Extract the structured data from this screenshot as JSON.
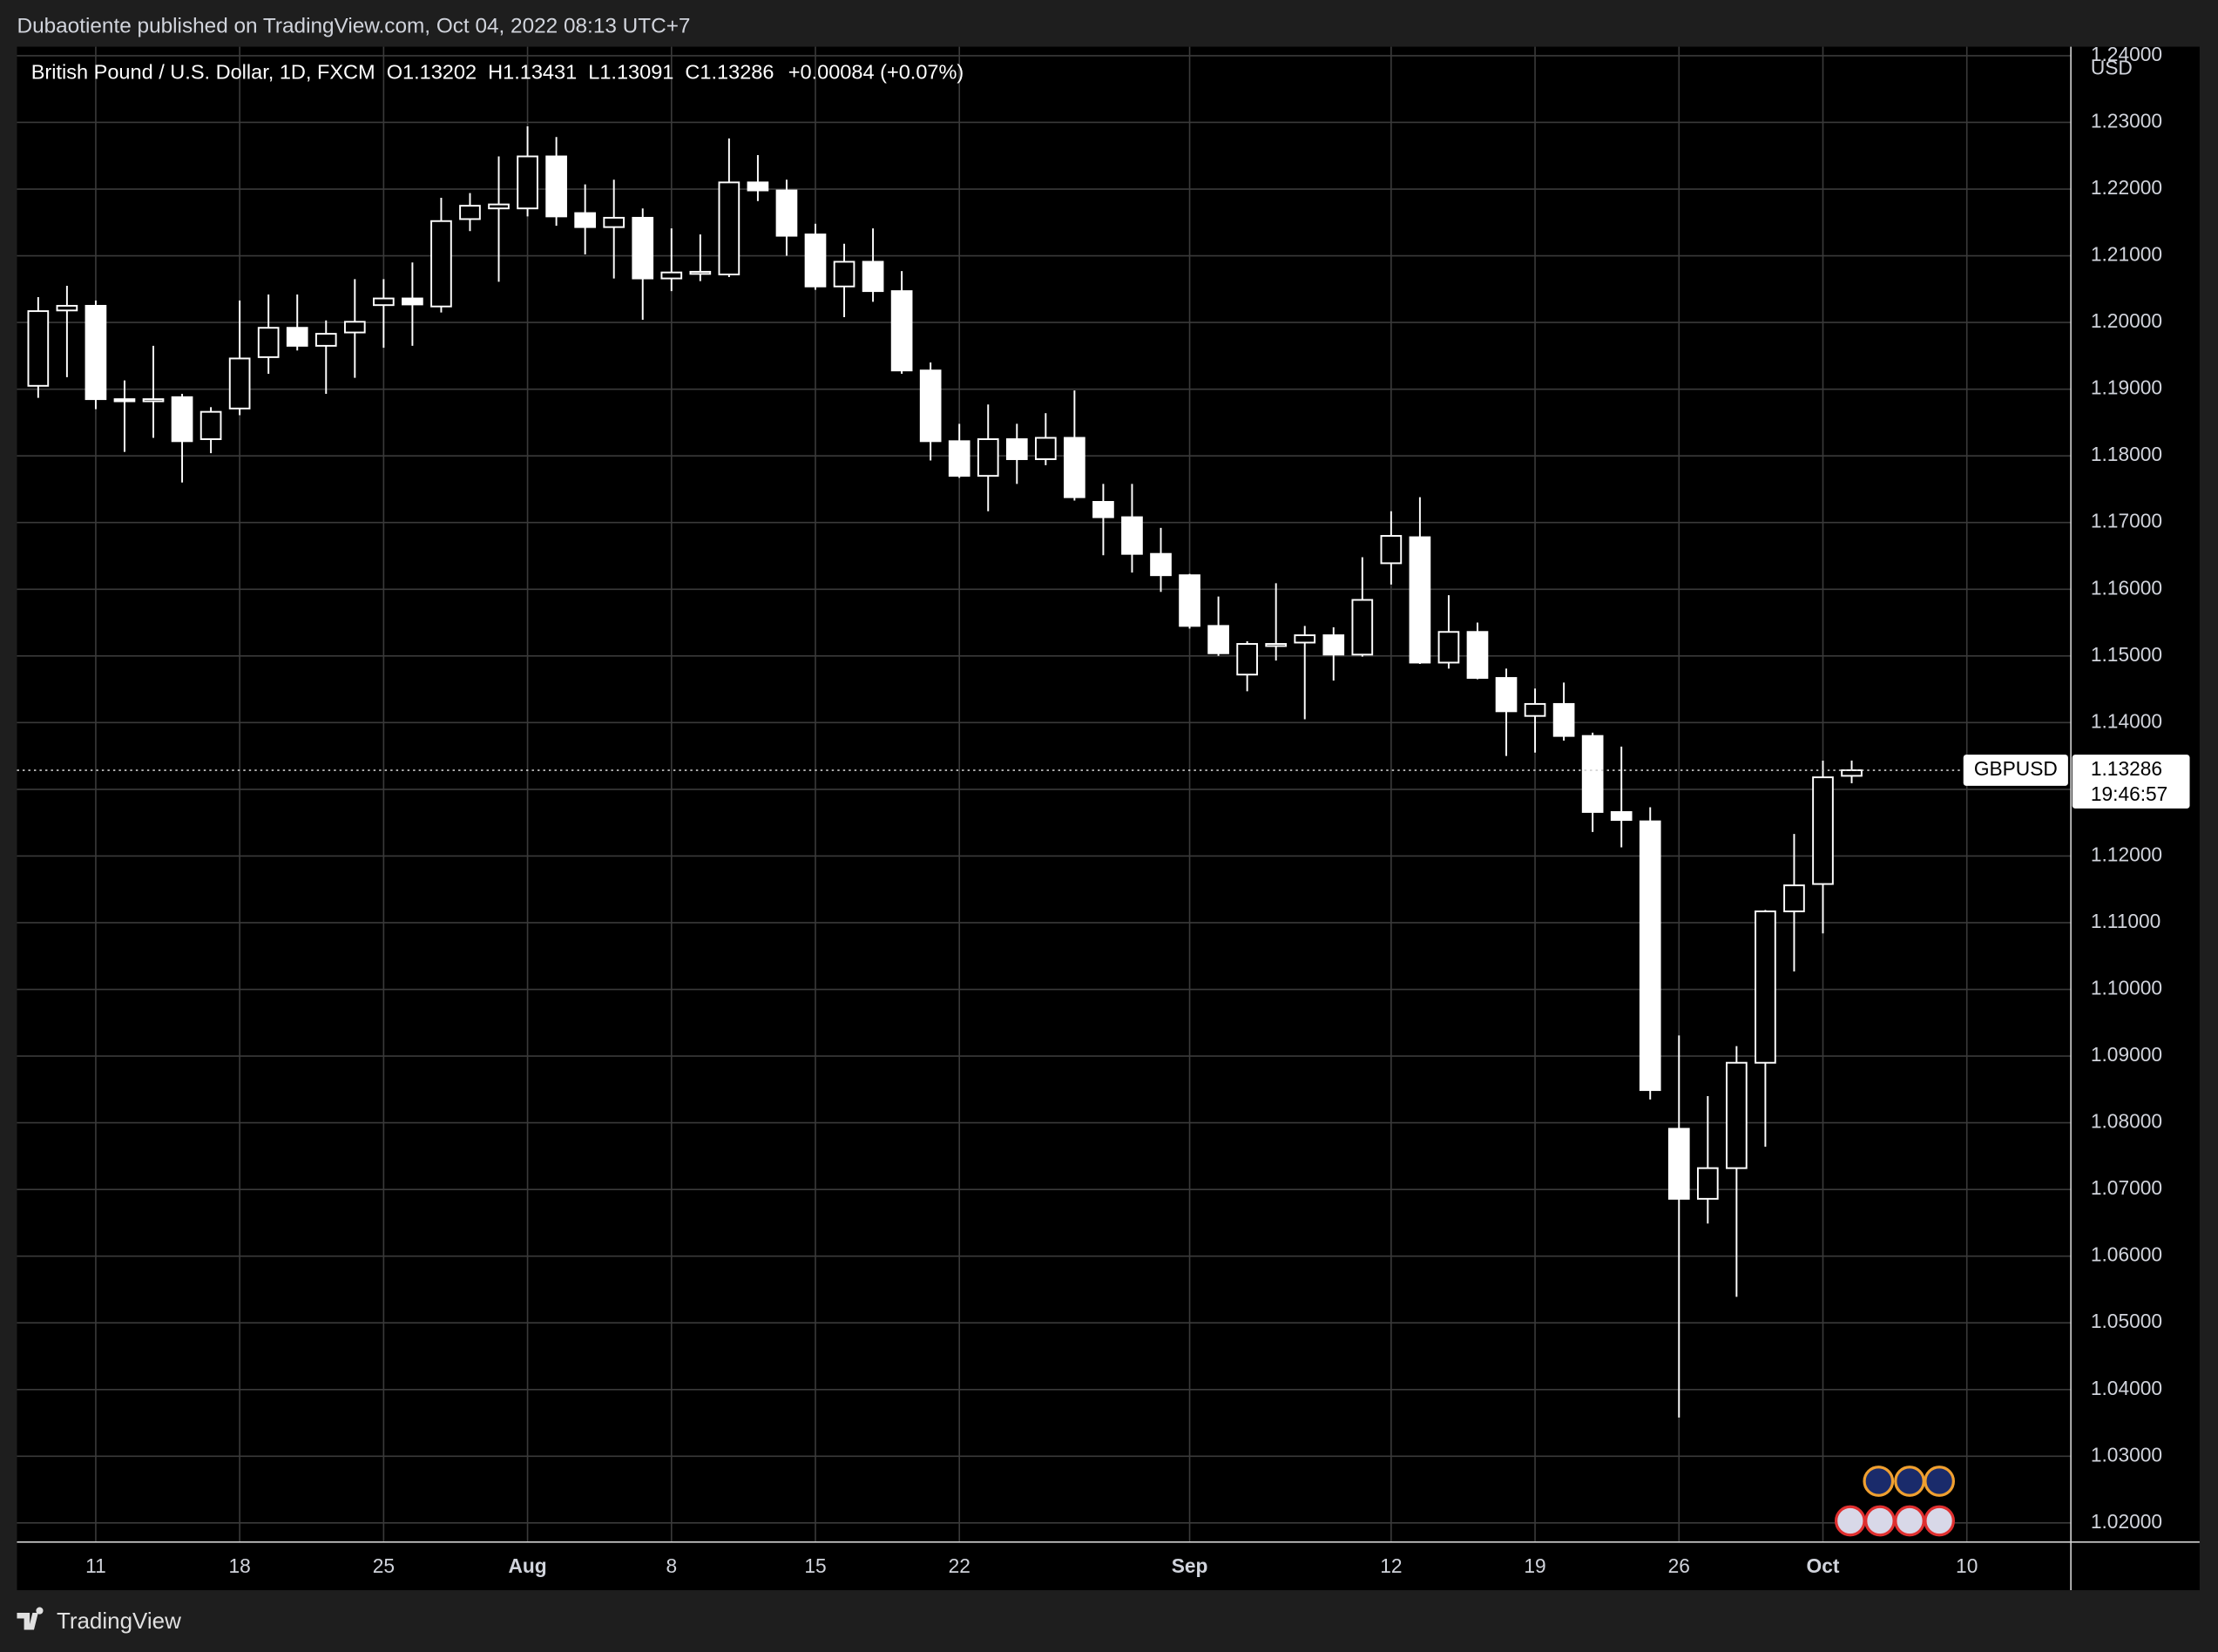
{
  "header": {
    "publisher": "Dubaotiente published on TradingView.com, Oct 04, 2022 08:13 UTC+7"
  },
  "footer": {
    "brand": "TradingView"
  },
  "chart_data": {
    "type": "candlestick",
    "title": "British Pound / U.S. Dollar, 1D, FXCM",
    "legend_labels": [
      "O",
      "H",
      "L",
      "C"
    ],
    "change_label": "+0.00084 (+0.07%)",
    "axis_unit": "USD",
    "symbol": "GBPUSD",
    "countdown": "19:46:57",
    "color": "#ffffff",
    "grid": true,
    "categories": [
      null,
      null,
      "11",
      null,
      null,
      null,
      null,
      "18",
      null,
      null,
      null,
      null,
      "25",
      null,
      null,
      null,
      null,
      "Aug",
      null,
      null,
      null,
      null,
      "8",
      null,
      null,
      null,
      null,
      "15",
      null,
      null,
      null,
      null,
      "22",
      null,
      null,
      null,
      null,
      null,
      null,
      null,
      "Sep",
      null,
      null,
      null,
      null,
      null,
      null,
      "12",
      null,
      null,
      null,
      null,
      "19",
      null,
      null,
      null,
      null,
      "26",
      null,
      null,
      null,
      null,
      "Oct",
      null,
      null,
      null,
      null,
      "10"
    ],
    "open": [
      1.1905,
      1.2018,
      1.2025,
      1.1885,
      1.1882,
      1.1888,
      1.1825,
      1.1871,
      1.1948,
      1.1992,
      1.1965,
      1.1985,
      1.2026,
      1.2036,
      1.2024,
      1.2155,
      1.2171,
      1.2171,
      1.2249,
      1.2164,
      1.2143,
      1.2157,
      1.2066,
      1.2073,
      1.2072,
      1.221,
      1.2198,
      1.2132,
      1.2054,
      1.2091,
      1.2047,
      1.1928,
      1.1822,
      1.177,
      1.1825,
      1.1795,
      1.1827,
      1.1731,
      1.1708,
      1.1653,
      1.1621,
      1.1545,
      1.1472,
      1.1516,
      1.152,
      1.1531,
      1.1502,
      1.1639,
      1.1678,
      1.149,
      1.1536,
      1.1467,
      1.141,
      1.1428,
      1.138,
      1.1266,
      1.1252,
      1.0791,
      1.0686,
      1.0732,
      1.089,
      1.1117,
      1.1158,
      1.13202,
      null,
      null,
      null,
      null
    ],
    "high": [
      1.2038,
      1.2055,
      1.2033,
      1.1913,
      1.1965,
      1.1893,
      1.1873,
      1.2033,
      1.2042,
      1.2042,
      1.2003,
      1.2065,
      1.2065,
      1.209,
      1.2187,
      1.2194,
      1.2249,
      1.2294,
      1.2278,
      1.2207,
      1.2214,
      1.2171,
      1.2141,
      1.2132,
      1.2276,
      1.2251,
      1.2214,
      1.2148,
      1.2118,
      1.2141,
      1.2077,
      1.194,
      1.1848,
      1.1877,
      1.1848,
      1.1864,
      1.1898,
      1.1758,
      1.1758,
      1.1692,
      1.1623,
      1.1589,
      1.1522,
      1.1609,
      1.1545,
      1.1543,
      1.1648,
      1.1717,
      1.1738,
      1.1591,
      1.155,
      1.1481,
      1.1451,
      1.146,
      1.1385,
      1.1364,
      1.1273,
      1.0931,
      1.084,
      1.0915,
      1.1119,
      1.1233,
      1.1343,
      1.13431,
      null,
      null,
      null,
      null
    ],
    "low": [
      1.1887,
      1.1918,
      1.187,
      1.1806,
      1.1827,
      1.176,
      1.1804,
      1.1861,
      1.1923,
      1.1958,
      1.1893,
      1.1917,
      1.1962,
      1.1965,
      1.2015,
      1.2137,
      1.2061,
      1.2159,
      1.2145,
      1.2102,
      1.2066,
      1.2004,
      1.2047,
      1.2062,
      1.2068,
      1.2182,
      1.21,
      1.2049,
      1.2008,
      1.2031,
      1.1923,
      1.1793,
      1.1767,
      1.1717,
      1.1758,
      1.1786,
      1.1733,
      1.1651,
      1.1625,
      1.1596,
      1.1541,
      1.15,
      1.1447,
      1.1493,
      1.1405,
      1.1463,
      1.1499,
      1.1607,
      1.1488,
      1.1481,
      1.1465,
      1.135,
      1.1355,
      1.1373,
      1.1236,
      1.1213,
      1.0835,
      1.0358,
      1.0649,
      1.0539,
      1.0764,
      1.1027,
      1.1084,
      1.13091,
      null,
      null,
      null,
      null
    ],
    "close": [
      1.2017,
      1.2025,
      1.1885,
      1.1883,
      1.1885,
      1.1822,
      1.1866,
      1.1946,
      1.1992,
      1.1965,
      1.1983,
      1.2001,
      1.2036,
      1.2027,
      1.2152,
      1.2175,
      1.2177,
      1.2249,
      1.2159,
      1.2143,
      1.2157,
      1.2066,
      1.2075,
      1.2076,
      1.221,
      1.2198,
      1.213,
      1.2054,
      1.2091,
      1.2047,
      1.1928,
      1.1822,
      1.177,
      1.1825,
      1.1795,
      1.1827,
      1.1738,
      1.1708,
      1.1653,
      1.1621,
      1.1545,
      1.1504,
      1.1518,
      1.1518,
      1.1531,
      1.1502,
      1.1584,
      1.168,
      1.149,
      1.1536,
      1.1467,
      1.1417,
      1.1428,
      1.138,
      1.1266,
      1.1254,
      1.0849,
      1.0686,
      1.0732,
      1.089,
      1.1117,
      1.1156,
      1.1318,
      1.13286,
      null,
      null,
      null,
      null
    ],
    "ylim": [
      1.01713,
      1.24135
    ],
    "yticks": [
      {
        "value": 1.02,
        "label": "1.02000"
      },
      {
        "value": 1.03,
        "label": "1.03000"
      },
      {
        "value": 1.04,
        "label": "1.04000"
      },
      {
        "value": 1.05,
        "label": "1.05000"
      },
      {
        "value": 1.06,
        "label": "1.06000"
      },
      {
        "value": 1.07,
        "label": "1.07000"
      },
      {
        "value": 1.08,
        "label": "1.08000"
      },
      {
        "value": 1.09,
        "label": "1.09000"
      },
      {
        "value": 1.1,
        "label": "1.10000"
      },
      {
        "value": 1.11,
        "label": "1.11000"
      },
      {
        "value": 1.12,
        "label": "1.12000"
      },
      {
        "value": 1.13,
        "label": "1.13000"
      },
      {
        "value": 1.14,
        "label": "1.14000"
      },
      {
        "value": 1.15,
        "label": "1.15000"
      },
      {
        "value": 1.16,
        "label": "1.16000"
      },
      {
        "value": 1.17,
        "label": "1.17000"
      },
      {
        "value": 1.18,
        "label": "1.18000"
      },
      {
        "value": 1.19,
        "label": "1.19000"
      },
      {
        "value": 1.2,
        "label": "1.20000"
      },
      {
        "value": 1.21,
        "label": "1.21000"
      },
      {
        "value": 1.22,
        "label": "1.22000"
      },
      {
        "value": 1.23,
        "label": "1.23000"
      },
      {
        "value": 1.24,
        "label": "1.24000"
      }
    ]
  }
}
